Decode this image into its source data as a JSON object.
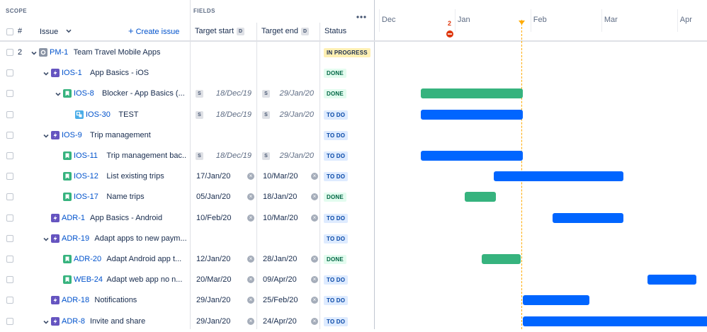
{
  "header": {
    "scope_label": "SCOPE",
    "fields_label": "FIELDS",
    "more_icon": "more-icon",
    "hash_label": "#",
    "issue_label": "Issue",
    "create_issue": "Create issue",
    "target_start": "Target start",
    "target_end": "Target end",
    "field_badge": "D",
    "status": "Status"
  },
  "timeline": {
    "months": [
      "Dec",
      "Jan",
      "Feb",
      "Mar",
      "Apr"
    ],
    "today_marker_count": "2",
    "colors": {
      "done": "#36b37e",
      "todo": "#0065ff",
      "today": "#ffab00",
      "alert": "#de350b"
    }
  },
  "rows": [
    {
      "num": "2",
      "key": "PM-1",
      "summary": "Team Travel Mobile Apps",
      "type": "initiative",
      "status": "IN PROGRESS",
      "status_kind": "progress",
      "start": "",
      "end": "",
      "start_inferred": false,
      "end_inferred": false,
      "inferred_badge": "",
      "bar": null
    },
    {
      "num": "",
      "key": "IOS-1",
      "summary": "App Basics - iOS",
      "type": "epic",
      "status": "DONE",
      "status_kind": "done",
      "start": "",
      "end": "",
      "start_inferred": false,
      "end_inferred": false,
      "inferred_badge": "",
      "bar": null
    },
    {
      "num": "",
      "key": "IOS-8",
      "summary": "Blocker - App Basics (...",
      "type": "story",
      "status": "DONE",
      "status_kind": "done",
      "start": "18/Dec/19",
      "end": "29/Jan/20",
      "start_inferred": true,
      "end_inferred": true,
      "inferred_badge": "S",
      "bar": {
        "start": "2019-12-18",
        "end": "2020-01-29",
        "kind": "done"
      }
    },
    {
      "num": "",
      "key": "IOS-30",
      "summary": "TEST",
      "type": "subtask",
      "status": "TO DO",
      "status_kind": "todo",
      "start": "18/Dec/19",
      "end": "29/Jan/20",
      "start_inferred": true,
      "end_inferred": true,
      "inferred_badge": "S",
      "bar": {
        "start": "2019-12-18",
        "end": "2020-01-29",
        "kind": "todo"
      }
    },
    {
      "num": "",
      "key": "IOS-9",
      "summary": "Trip management",
      "type": "epic",
      "status": "TO DO",
      "status_kind": "todo",
      "start": "",
      "end": "",
      "start_inferred": false,
      "end_inferred": false,
      "inferred_badge": "",
      "bar": null
    },
    {
      "num": "",
      "key": "IOS-11",
      "summary": "Trip management bac...",
      "type": "story",
      "status": "TO DO",
      "status_kind": "todo",
      "start": "18/Dec/19",
      "end": "29/Jan/20",
      "start_inferred": true,
      "end_inferred": true,
      "inferred_badge": "S",
      "bar": {
        "start": "2019-12-18",
        "end": "2020-01-29",
        "kind": "todo"
      }
    },
    {
      "num": "",
      "key": "IOS-12",
      "summary": "List existing trips",
      "type": "story",
      "status": "TO DO",
      "status_kind": "todo",
      "start": "17/Jan/20",
      "end": "10/Mar/20",
      "start_inferred": false,
      "end_inferred": false,
      "inferred_badge": "",
      "bar": {
        "start": "2020-01-17",
        "end": "2020-03-10",
        "kind": "todo"
      }
    },
    {
      "num": "",
      "key": "IOS-17",
      "summary": "Name trips",
      "type": "story",
      "status": "DONE",
      "status_kind": "done",
      "start": "05/Jan/20",
      "end": "18/Jan/20",
      "start_inferred": false,
      "end_inferred": false,
      "inferred_badge": "",
      "bar": {
        "start": "2020-01-05",
        "end": "2020-01-18",
        "kind": "done"
      }
    },
    {
      "num": "",
      "key": "ADR-1",
      "summary": "App Basics - Android",
      "type": "epic",
      "status": "TO DO",
      "status_kind": "todo",
      "start": "10/Feb/20",
      "end": "10/Mar/20",
      "start_inferred": false,
      "end_inferred": false,
      "inferred_badge": "",
      "bar": {
        "start": "2020-02-10",
        "end": "2020-03-10",
        "kind": "todo"
      }
    },
    {
      "num": "",
      "key": "ADR-19",
      "summary": "Adapt apps to new paym...",
      "type": "epic",
      "status": "TO DO",
      "status_kind": "todo",
      "start": "",
      "end": "",
      "start_inferred": false,
      "end_inferred": false,
      "inferred_badge": "",
      "bar": null
    },
    {
      "num": "",
      "key": "ADR-20",
      "summary": "Adapt Android app t...",
      "type": "story",
      "status": "DONE",
      "status_kind": "done",
      "start": "12/Jan/20",
      "end": "28/Jan/20",
      "start_inferred": false,
      "end_inferred": false,
      "inferred_badge": "",
      "bar": {
        "start": "2020-01-12",
        "end": "2020-01-28",
        "kind": "done"
      }
    },
    {
      "num": "",
      "key": "WEB-24",
      "summary": "Adapt web app no n...",
      "type": "story",
      "status": "TO DO",
      "status_kind": "todo",
      "start": "20/Mar/20",
      "end": "09/Apr/20",
      "start_inferred": false,
      "end_inferred": false,
      "inferred_badge": "",
      "bar": {
        "start": "2020-03-20",
        "end": "2020-04-09",
        "kind": "todo"
      }
    },
    {
      "num": "",
      "key": "ADR-18",
      "summary": "Notifications",
      "type": "epic",
      "status": "TO DO",
      "status_kind": "todo",
      "start": "29/Jan/20",
      "end": "25/Feb/20",
      "start_inferred": false,
      "end_inferred": false,
      "inferred_badge": "",
      "bar": {
        "start": "2020-01-29",
        "end": "2020-02-25",
        "kind": "todo"
      }
    },
    {
      "num": "",
      "key": "ADR-8",
      "summary": "Invite and share",
      "type": "epic",
      "status": "TO DO",
      "status_kind": "todo",
      "start": "29/Jan/20",
      "end": "24/Apr/20",
      "start_inferred": false,
      "end_inferred": false,
      "inferred_badge": "",
      "bar": {
        "start": "2020-01-29",
        "end": "2020-04-24",
        "kind": "todo"
      }
    }
  ]
}
